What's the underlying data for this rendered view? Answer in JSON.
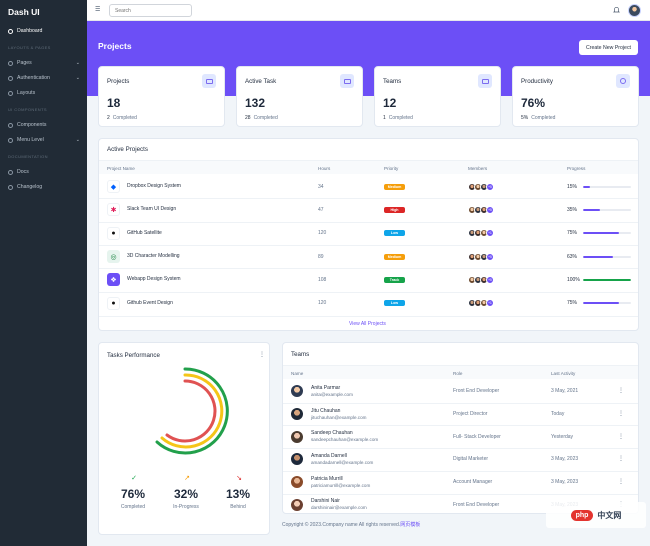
{
  "brand": "Dash UI",
  "sidebar": {
    "items": [
      {
        "label": "Dashboard"
      },
      {
        "label": "Pages"
      },
      {
        "label": "Authentication"
      },
      {
        "label": "Layouts"
      },
      {
        "label": "Components"
      },
      {
        "label": "Menu Level"
      },
      {
        "label": "Docs"
      },
      {
        "label": "Changelog"
      }
    ],
    "sections": [
      "LAYOUTS & PAGES",
      "UI COMPONENTS",
      "DOCUMENTATION"
    ]
  },
  "topbar": {
    "search_placeholder": "Search"
  },
  "hero": {
    "title": "Projects",
    "create_button": "Create New Project"
  },
  "stats": [
    {
      "title": "Projects",
      "value": "18",
      "count": "2",
      "label": "Completed"
    },
    {
      "title": "Active Task",
      "value": "132",
      "count": "28",
      "label": "Completed"
    },
    {
      "title": "Teams",
      "value": "12",
      "count": "1",
      "label": "Completed"
    },
    {
      "title": "Productivity",
      "value": "76%",
      "count": "5%",
      "label": "Completed"
    }
  ],
  "active_projects": {
    "title": "Active Projects",
    "headers": [
      "Project Name",
      "Hours",
      "Priority",
      "Members",
      "Progress"
    ],
    "rows": [
      {
        "name": "Dropbox Design System",
        "hours": "34",
        "priority": "Medium",
        "priority_color": "#f59e0b",
        "members_more": "+5",
        "progress": "15%",
        "progress_value": 15,
        "icon": "dropbox-icon",
        "bar_color": "#6c4ff6"
      },
      {
        "name": "Slack Team UI Design",
        "hours": "47",
        "priority": "High",
        "priority_color": "#dc2626",
        "members_more": "+5",
        "progress": "35%",
        "progress_value": 35,
        "icon": "slack-icon",
        "bar_color": "#6c4ff6"
      },
      {
        "name": "GitHub Satellite",
        "hours": "120",
        "priority": "Low",
        "priority_color": "#0ea5e9",
        "members_more": "+1",
        "progress": "75%",
        "progress_value": 75,
        "icon": "github-icon",
        "bar_color": "#6c4ff6"
      },
      {
        "name": "3D Character Modelling",
        "hours": "89",
        "priority": "Medium",
        "priority_color": "#f59e0b",
        "members_more": "+5",
        "progress": "63%",
        "progress_value": 63,
        "icon": "3d-modelling-icon",
        "bar_color": "#6c4ff6"
      },
      {
        "name": "Webapp Design System",
        "hours": "108",
        "priority": "Track",
        "priority_color": "#16a34a",
        "members_more": "+5",
        "progress": "100%",
        "progress_value": 100,
        "icon": "layers-icon",
        "bar_color": "#16a34a"
      },
      {
        "name": "Github Event Design",
        "hours": "120",
        "priority": "Low",
        "priority_color": "#0ea5e9",
        "members_more": "+1",
        "progress": "75%",
        "progress_value": 75,
        "icon": "github-icon",
        "bar_color": "#6c4ff6"
      }
    ],
    "view_all": "View All Projects"
  },
  "tasks_performance": {
    "title": "Tasks Performance",
    "metrics": [
      {
        "value": "76%",
        "label": "Completed",
        "color": "#16a34a",
        "icon": "check-circle-icon"
      },
      {
        "value": "32%",
        "label": "In-Progress",
        "color": "#f59e0b",
        "icon": "trending-up-icon"
      },
      {
        "value": "13%",
        "label": "Behind",
        "color": "#dc2626",
        "icon": "trending-down-icon"
      }
    ]
  },
  "teams": {
    "title": "Teams",
    "headers": [
      "Name",
      "Role",
      "Last Activity"
    ],
    "rows": [
      {
        "name": "Anita Parmar",
        "email": "anita@example.com",
        "role": "Front End Developer",
        "activity": "3 May, 2021"
      },
      {
        "name": "Jitu Chauhan",
        "email": "jituchauhan@example.com",
        "role": "Project Director",
        "activity": "Today"
      },
      {
        "name": "Sandeep Chauhan",
        "email": "sandeepchauhan@example.com",
        "role": "Full- Stack Developer",
        "activity": "Yesterday"
      },
      {
        "name": "Amanda Darnell",
        "email": "amandadarnell@example.com",
        "role": "Digital Marketer",
        "activity": "3 May, 2023"
      },
      {
        "name": "Patricia Murrill",
        "email": "patriciamurrill@example.com",
        "role": "Account Manager",
        "activity": "3 May, 2023"
      },
      {
        "name": "Darshini Nair",
        "email": "darshininair@example.com",
        "role": "Front End Developer",
        "activity": "3 May, 2023"
      }
    ]
  },
  "footer": {
    "text": "Copyright © 2023.Company name All rights reserved.",
    "link": "网页模板"
  },
  "watermark": {
    "badge": "php",
    "text": "中文网"
  }
}
